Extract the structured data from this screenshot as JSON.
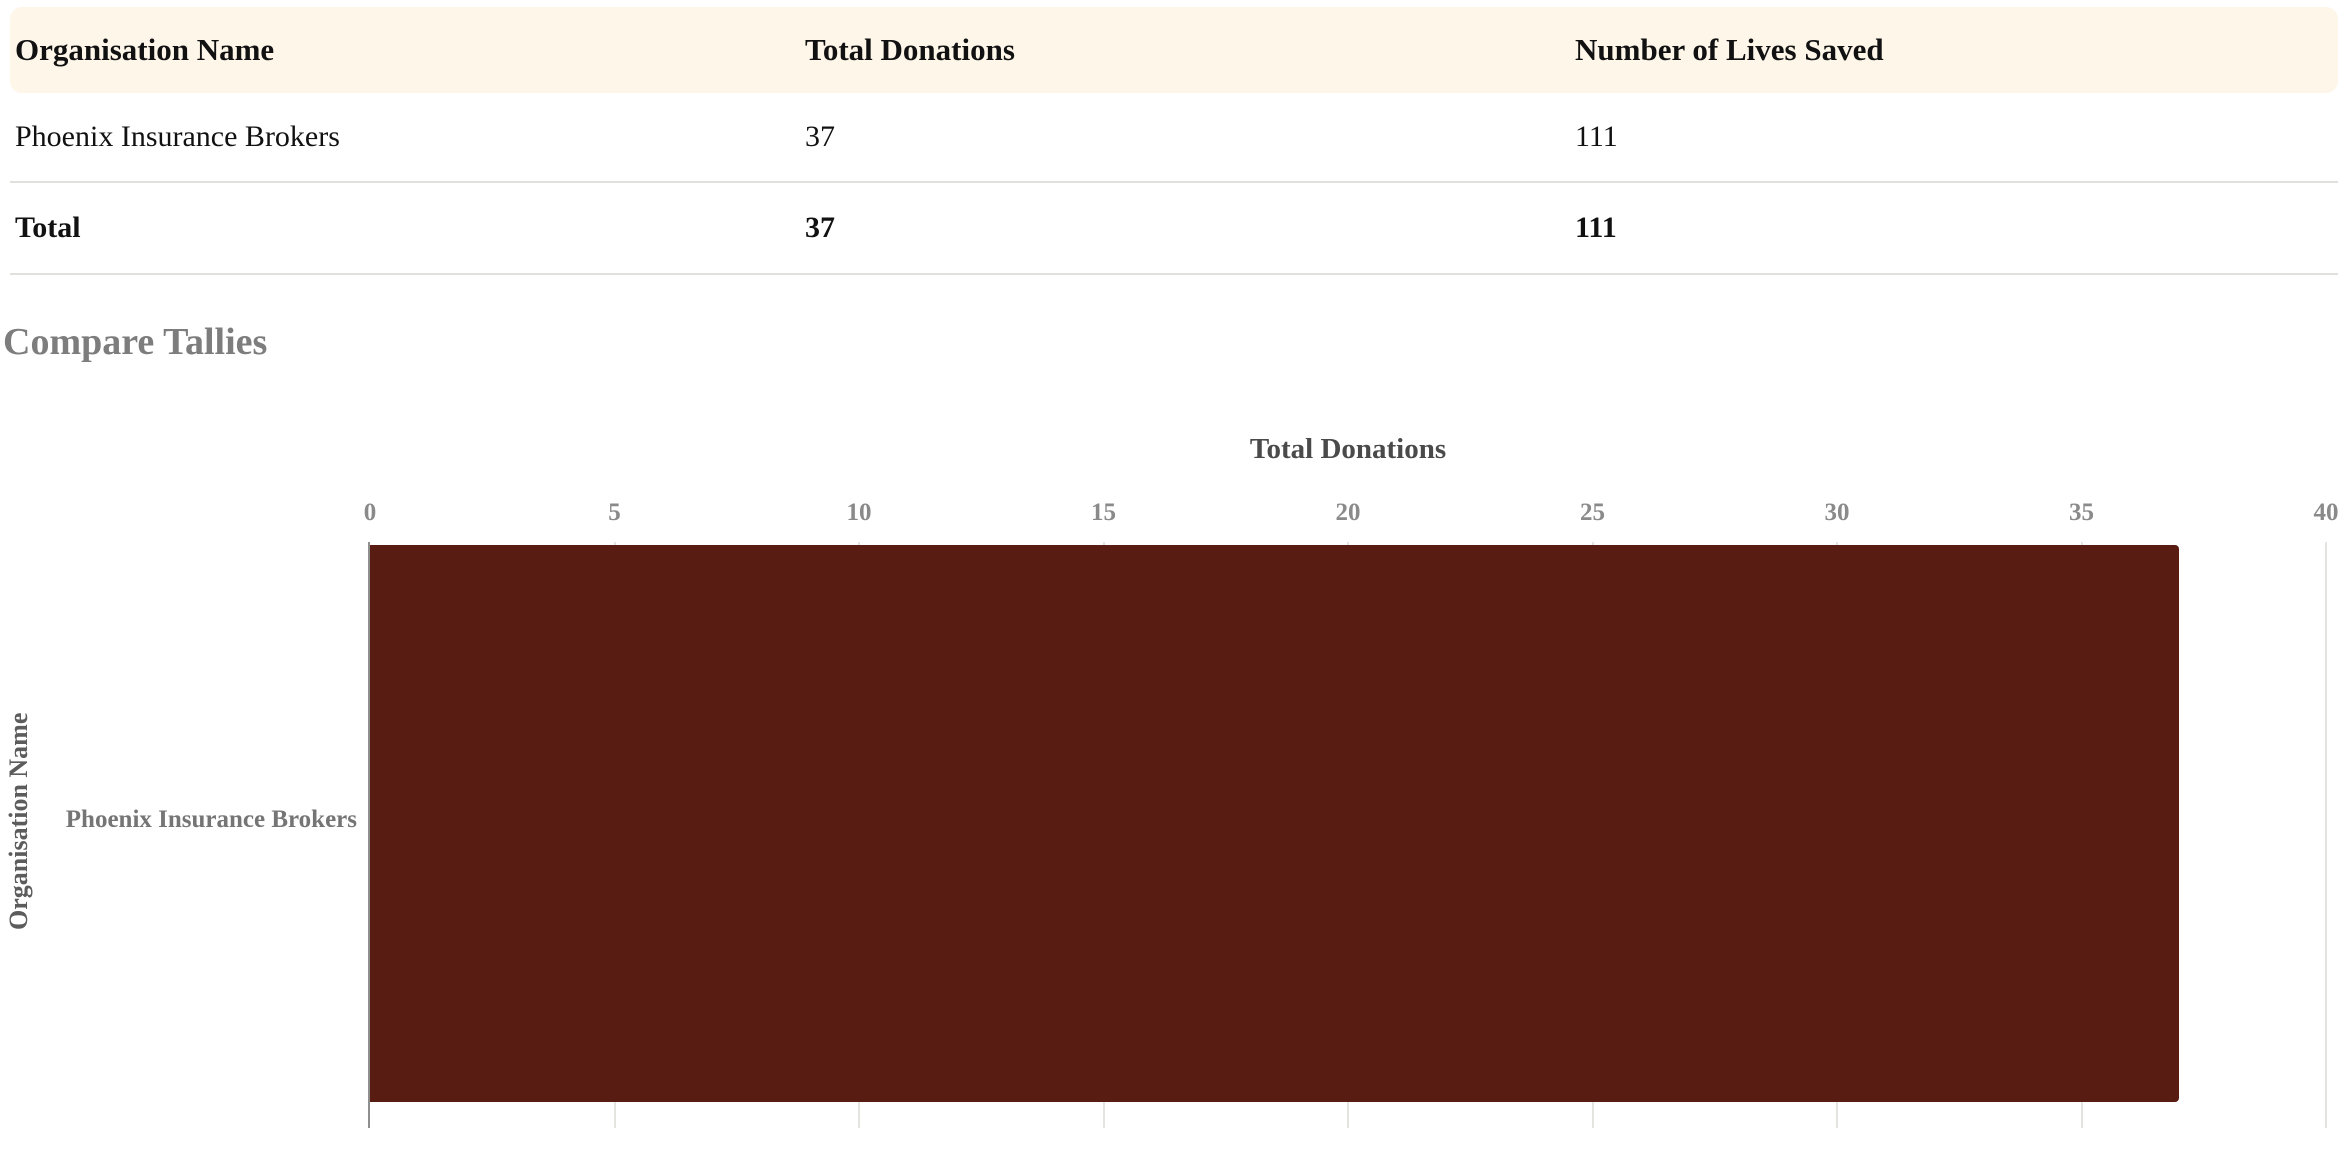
{
  "table": {
    "columns": [
      "Organisation Name",
      "Total Donations",
      "Number of Lives Saved"
    ],
    "rows": [
      {
        "organisation_name": "Phoenix Insurance Brokers",
        "total_donations": "37",
        "lives_saved": "111"
      }
    ],
    "total_row": {
      "label": "Total",
      "total_donations": "37",
      "lives_saved": "111"
    }
  },
  "section_title": "Compare Tallies",
  "chart_data": {
    "type": "bar",
    "orientation": "horizontal",
    "title": "Total Donations",
    "xlabel": "Total Donations",
    "ylabel": "Organisation Name",
    "categories": [
      "Phoenix Insurance Brokers"
    ],
    "series": [
      {
        "name": "Total Donations",
        "values": [
          37
        ]
      }
    ],
    "values": [
      37
    ],
    "xlim": [
      0,
      40
    ],
    "xticks": [
      0,
      5,
      10,
      15,
      20,
      25,
      30,
      35,
      40
    ],
    "grid": true,
    "x_axis_position": "top",
    "legend": "none"
  },
  "colors": {
    "table_header_bg": "#fdf6e9",
    "bar": "#591c13",
    "gridline": "#e4e4e1",
    "axis_line": "#8f8f8f"
  }
}
